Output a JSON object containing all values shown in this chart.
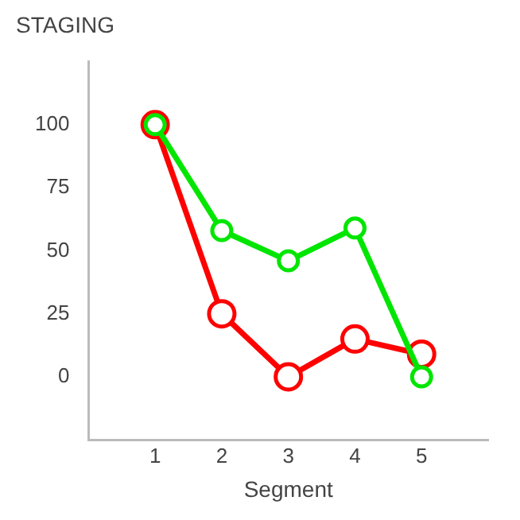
{
  "chart_data": {
    "type": "line",
    "title": "STAGING",
    "xlabel": "Segment",
    "x": [
      1,
      2,
      3,
      4,
      5
    ],
    "series": [
      {
        "color": "#ff0000",
        "values": [
          100,
          25,
          0,
          15,
          9
        ]
      },
      {
        "color": "#00e600",
        "values": [
          100,
          58,
          46,
          59,
          0
        ]
      }
    ],
    "xlim": [
      0,
      6
    ],
    "xticks": [
      1,
      2,
      3,
      4,
      5
    ],
    "ylim": [
      -25,
      125
    ],
    "yticks": [
      0,
      25,
      50,
      75,
      100
    ],
    "grid": false,
    "legend": false,
    "marker": "circle",
    "line_style": "solid"
  }
}
